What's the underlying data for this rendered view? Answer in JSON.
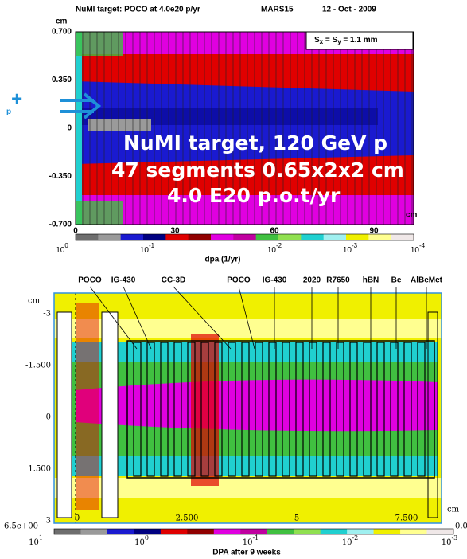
{
  "top_plot": {
    "title": "NuMI target: POCO at 4.0e20 p/yr",
    "code": "MARS15",
    "date": "12 - Oct - 2009",
    "y_unit": "cm",
    "y_ticks": [
      "0.700",
      "0.350",
      "0",
      "-0.350",
      "-0.700"
    ],
    "x_ticks": [
      "0",
      "30",
      "60",
      "90"
    ],
    "x_unit": "cm",
    "beam": {
      "particle": "p",
      "charge": "+"
    },
    "sigma": {
      "s1": "S",
      "sub1": "x",
      "mid": " = S",
      "sub2": "y",
      "rest": " = 1.1 mm"
    },
    "annotation": [
      "NuMI target, 120 GeV p",
      "47 segments 0.65x2x2 cm",
      "4.0 E20 p.o.t/yr"
    ],
    "colorbar": {
      "ticks": [
        {
          "base": "10",
          "exp": "0"
        },
        {
          "base": "10",
          "exp": "-1"
        },
        {
          "base": "10",
          "exp": "-2"
        },
        {
          "base": "10",
          "exp": "-3"
        },
        {
          "base": "10",
          "exp": "-4"
        }
      ],
      "label": "dpa (1/yr)"
    }
  },
  "bottom_plot": {
    "segment_labels": [
      "POCO",
      "IG-430",
      "CC-3D",
      "POCO",
      "IG-430",
      "2020",
      "R7650",
      "hBN",
      "Be",
      "AlBeMet"
    ],
    "y_unit": "cm",
    "y_ticks": [
      "-3",
      "-1.500",
      "0",
      "1.500",
      "3"
    ],
    "x_ticks": [
      "0",
      "2.500",
      "5",
      "7.500"
    ],
    "x_unit": "cm",
    "colorbar": {
      "max_label": "6.5e+00",
      "min_label": "0.0",
      "ticks": [
        {
          "base": "10",
          "exp": "1"
        },
        {
          "base": "10",
          "exp": "0"
        },
        {
          "base": "10",
          "exp": "-1"
        },
        {
          "base": "10",
          "exp": "-2"
        },
        {
          "base": "10",
          "exp": "-3"
        }
      ],
      "label": "DPA after 9 weeks"
    }
  }
}
